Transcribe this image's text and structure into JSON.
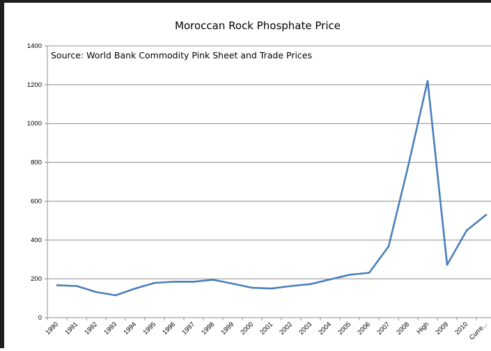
{
  "chart_data": {
    "type": "line",
    "title": "Moroccan Rock Phosphate Price",
    "annotation": "Source: World Bank Commodity Pink Sheet and Trade Prices",
    "xlabel": "",
    "ylabel": "",
    "ylim": [
      0,
      1400
    ],
    "yticks": [
      0,
      200,
      400,
      600,
      800,
      1000,
      1200,
      1400
    ],
    "grid": "horizontal",
    "legend": "none",
    "line_color": "#4a7ebb",
    "categories": [
      "1990",
      "1991",
      "1992",
      "1993",
      "1994",
      "1995",
      "1996",
      "1997",
      "1998",
      "1999",
      "2000",
      "2001",
      "2002",
      "2003",
      "2004",
      "2005",
      "2006",
      "2007",
      "2008",
      "High",
      "2009",
      "2010",
      "Curre..."
    ],
    "series": [
      {
        "values": [
          167,
          163,
          132,
          115,
          150,
          179,
          185,
          185,
          195,
          175,
          154,
          150,
          163,
          173,
          197,
          221,
          231,
          367,
          780,
          1220,
          272,
          449,
          530
        ]
      }
    ]
  }
}
